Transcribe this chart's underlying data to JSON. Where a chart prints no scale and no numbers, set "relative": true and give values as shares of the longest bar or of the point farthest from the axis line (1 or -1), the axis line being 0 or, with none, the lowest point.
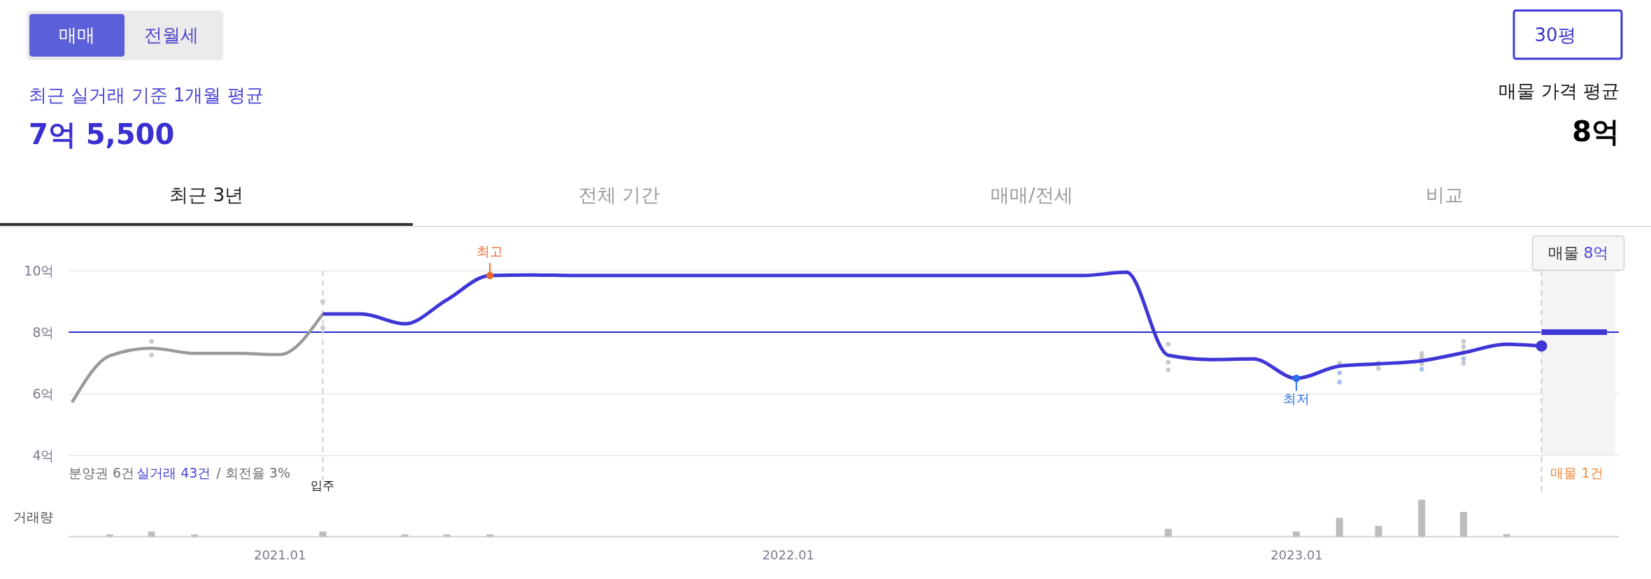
{
  "chart_data": [
    {
      "type": "other",
      "annotations": [
        "매매",
        "전월세",
        "30평",
        "최근 실거래 기준 1개월 평균",
        "7억 5,500",
        "매물 가격 평균",
        "8억",
        "최근 3년",
        "전체 기간",
        "매매/전세",
        "비교"
      ]
    },
    {
      "type": "line",
      "series": [
        {
          "color": "#9a9a9a",
          "x": [
            "2020-08-05",
            "2020-09",
            "2020-10",
            "2020-11",
            "2020-12",
            "2021-01",
            "2021-02"
          ],
          "values": [
            5.72,
            7.23,
            7.48,
            7.31,
            7.31,
            7.27,
            8.59
          ]
        },
        {
          "color": "#3f36d6",
          "x": [
            "2021-02",
            "2021-03",
            "2021-04",
            "2021-05",
            "2021-06",
            "2021-07",
            "2021-08",
            "2021-09",
            "2021-10",
            "2021-11",
            "2021-12",
            "2022-01",
            "2022-02",
            "2022-03",
            "2022-04",
            "2022-05",
            "2022-06",
            "2022-07",
            "2022-08",
            "2022-09",
            "2022-10",
            "2022-11",
            "2022-12",
            "2023-01",
            "2023-02",
            "2023-03",
            "2023-04",
            "2023-05",
            "2023-06",
            "2023-06-26"
          ],
          "values": [
            8.59,
            8.59,
            8.27,
            9.05,
            9.84,
            9.86,
            9.84,
            9.84,
            9.84,
            9.84,
            9.84,
            9.84,
            9.84,
            9.84,
            9.84,
            9.84,
            9.84,
            9.84,
            9.84,
            9.95,
            7.25,
            7.11,
            7.13,
            6.5,
            6.9,
            6.97,
            7.07,
            7.33,
            7.61,
            7.55
          ]
        },
        {
          "color": "#3f36d6",
          "x": [
            "2023-06-26",
            "2023-08-12"
          ],
          "values": [
            8,
            8
          ]
        },
        {
          "type": "scatter",
          "color": "#c9c9c9",
          "x": [
            "2020-10",
            "2020-10",
            "2021-02",
            "2021-02",
            "2022-10",
            "2022-10",
            "2022-10",
            "2023-02",
            "2023-03",
            "2023-03",
            "2023-04",
            "2023-04",
            "2023-04",
            "2023-04",
            "2023-05",
            "2023-05",
            "2023-05",
            "2023-05"
          ],
          "values": [
            7.7,
            7.26,
            8.99,
            8.14,
            7.61,
            7.02,
            6.77,
            6.99,
            7.0,
            6.82,
            7.31,
            7.23,
            7.14,
            6.97,
            7.7,
            7.53,
            7.36,
            6.99
          ]
        },
        {
          "type": "scatter",
          "color": "#a7c0ec",
          "x": [
            "2023-02",
            "2023-02",
            "2023-04",
            "2023-05"
          ],
          "values": [
            6.68,
            6.38,
            6.8,
            7.14
          ]
        },
        {
          "type": "scatter",
          "color": "#3f36d6",
          "x": [
            "2023-06-26"
          ],
          "values": [
            7.55
          ]
        }
      ],
      "xlim": [
        "2020-08-05",
        "2023-08-18"
      ],
      "ylim": [
        4,
        10
      ],
      "yticks": [
        {
          "value": 4,
          "label": "4억"
        },
        {
          "value": 6,
          "label": "6억"
        },
        {
          "value": 8,
          "label": "8억"
        },
        {
          "value": 10,
          "label": "10억"
        }
      ],
      "tick_labels": "y",
      "grid": "y",
      "ref_lines": [
        {
          "axis": "y",
          "value": 8,
          "color": "#2b2bd6"
        },
        {
          "axis": "x",
          "value": "2021-02",
          "label": "입주",
          "line_style": "dashed",
          "color": "#d6d6d6"
        },
        {
          "axis": "x",
          "value": "2023-06-26",
          "label": "매물 1건",
          "line_style": "dashed",
          "color": "#d6d6d6"
        }
      ],
      "bands": [
        {
          "axis": "x",
          "from": "2023-06-26",
          "to": "2023-08-18",
          "color": "#f4f4f4"
        }
      ],
      "annotations": [
        {
          "text": "최고",
          "x": "2021-06",
          "y": 9.84
        },
        {
          "text": "최저",
          "x": "2023-01",
          "y": 6.5
        },
        "매물 8억",
        "분양권 6건",
        "실거래 43건",
        "/ 회전율 3%"
      ]
    },
    {
      "type": "bar",
      "relative": true,
      "ylabel": "거래량",
      "color": "#bdbdbd",
      "x": [
        "2020-09",
        "2020-10",
        "2020-11",
        "2021-02",
        "2021-04",
        "2021-05",
        "2021-06",
        "2022-10",
        "2023-01",
        "2023-02",
        "2023-03",
        "2023-04",
        "2023-05",
        "2023-06"
      ],
      "values": [
        0.06,
        0.14,
        0.06,
        0.14,
        0.06,
        0.06,
        0.06,
        0.21,
        0.14,
        0.51,
        0.29,
        1,
        0.67,
        0.07
      ],
      "xlim": [
        "2020-08-05",
        "2023-08-18"
      ],
      "xticks": [
        {
          "value": "2021-01",
          "label": "2021.01"
        },
        {
          "value": "2022-01",
          "label": "2022.01"
        },
        {
          "value": "2023-01",
          "label": "2023.01"
        }
      ],
      "tick_labels": "x"
    }
  ]
}
